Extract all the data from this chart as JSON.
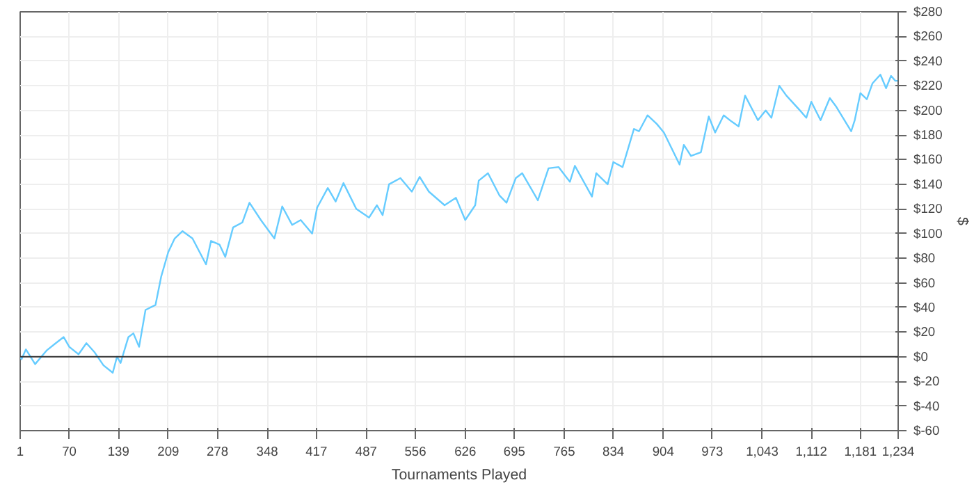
{
  "chart_data": {
    "type": "line",
    "xlabel": "Tournaments Played",
    "ylabel": "$",
    "xlim": [
      1,
      1234
    ],
    "ylim": [
      -60,
      280
    ],
    "xticks": [
      1,
      70,
      139,
      209,
      278,
      348,
      417,
      487,
      556,
      626,
      695,
      765,
      834,
      904,
      973,
      {
        "value": 1043,
        "label": "1,043"
      },
      {
        "value": 1112,
        "label": "1,112"
      },
      {
        "value": 1181,
        "label": "1,181"
      },
      {
        "value": 1234,
        "label": "1,234"
      }
    ],
    "yticks": [
      {
        "value": -60,
        "label": "$-60"
      },
      {
        "value": -40,
        "label": "$-40"
      },
      {
        "value": -20,
        "label": "$-20"
      },
      {
        "value": 0,
        "label": "$0"
      },
      {
        "value": 20,
        "label": "$20"
      },
      {
        "value": 40,
        "label": "$40"
      },
      {
        "value": 60,
        "label": "$60"
      },
      {
        "value": 80,
        "label": "$80"
      },
      {
        "value": 100,
        "label": "$100"
      },
      {
        "value": 120,
        "label": "$120"
      },
      {
        "value": 140,
        "label": "$140"
      },
      {
        "value": 160,
        "label": "$160"
      },
      {
        "value": 180,
        "label": "$180"
      },
      {
        "value": 200,
        "label": "$200"
      },
      {
        "value": 220,
        "label": "$220"
      },
      {
        "value": 240,
        "label": "$240"
      },
      {
        "value": 260,
        "label": "$260"
      },
      {
        "value": 280,
        "label": "$280"
      }
    ],
    "grid": true,
    "marker": "none",
    "line_style": "solid",
    "ref_lines": [
      {
        "axis": "y",
        "value": 0,
        "label": null,
        "color": "#333333"
      }
    ],
    "series": [
      {
        "color": "#66ccff",
        "x": [
          1,
          3,
          9,
          22,
          38,
          51,
          62,
          70,
          83,
          94,
          105,
          118,
          131,
          137,
          142,
          153,
          160,
          168,
          177,
          191,
          199,
          209,
          218,
          229,
          243,
          262,
          269,
          281,
          289,
          300,
          313,
          323,
          339,
          358,
          369,
          383,
          395,
          411,
          418,
          433,
          444,
          455,
          473,
          491,
          502,
          510,
          519,
          535,
          551,
          562,
          575,
          597,
          613,
          626,
          640,
          645,
          658,
          674,
          684,
          697,
          706,
          728,
          743,
          757,
          773,
          780,
          804,
          810,
          826,
          834,
          847,
          863,
          870,
          882,
          895,
          905,
          927,
          933,
          943,
          957,
          968,
          977,
          989,
          1000,
          1010,
          1019,
          1037,
          1048,
          1056,
          1067,
          1077,
          1096,
          1105,
          1112,
          1125,
          1138,
          1147,
          1168,
          1173,
          1181,
          1190,
          1198,
          1209,
          1217,
          1224,
          1230,
          1234
        ],
        "values": [
          0,
          -2,
          6,
          -6,
          5,
          11,
          16,
          8,
          2,
          11,
          4,
          -7,
          -13,
          0,
          -5,
          16,
          19,
          8,
          38,
          42,
          65,
          85,
          96,
          102,
          96,
          75,
          94,
          91,
          81,
          105,
          109,
          125,
          111,
          96,
          122,
          107,
          111,
          100,
          121,
          137,
          126,
          141,
          120,
          113,
          123,
          115,
          140,
          145,
          134,
          146,
          134,
          123,
          129,
          111,
          123,
          143,
          149,
          131,
          125,
          145,
          149,
          127,
          153,
          154,
          142,
          155,
          130,
          149,
          140,
          158,
          154,
          185,
          183,
          196,
          189,
          182,
          156,
          172,
          163,
          166,
          195,
          182,
          196,
          191,
          187,
          212,
          192,
          200,
          194,
          220,
          212,
          200,
          194,
          207,
          192,
          210,
          203,
          183,
          192,
          214,
          209,
          222,
          229,
          218,
          228,
          224,
          224
        ]
      }
    ]
  }
}
